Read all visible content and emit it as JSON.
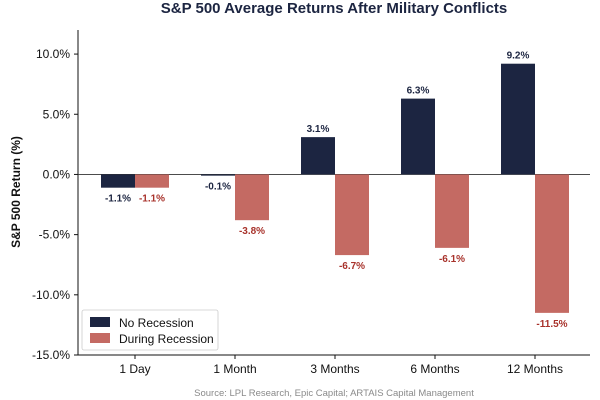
{
  "chart_data": {
    "type": "bar",
    "title": "S&P 500 Average Returns After Military Conflicts",
    "xlabel": "",
    "ylabel": "S&P 500 Return (%)",
    "categories": [
      "1 Day",
      "1 Month",
      "3 Months",
      "6 Months",
      "12 Months"
    ],
    "series": [
      {
        "name": "No Recession",
        "color": "#1c2541",
        "label_color": "#1c2541",
        "values": [
          -1.1,
          -0.1,
          3.1,
          6.3,
          9.2
        ],
        "labels": [
          "-1.1%",
          "-0.1%",
          "3.1%",
          "6.3%",
          "9.2%"
        ]
      },
      {
        "name": "During Recession",
        "color": "#c46a63",
        "label_color": "#a8322b",
        "values": [
          -1.1,
          -3.8,
          -6.7,
          -6.1,
          -11.5
        ],
        "labels": [
          "-1.1%",
          "-3.8%",
          "-6.7%",
          "-6.1%",
          "-11.5%"
        ]
      }
    ],
    "ylim": [
      -15,
      12
    ],
    "yticks": [
      10,
      5,
      0,
      -5,
      -10,
      -15
    ],
    "ytick_labels": [
      "10.0%",
      "5.0%",
      "0.0%",
      "-5.0%",
      "-10.0%",
      "-15.0%"
    ],
    "grid": false,
    "legend_position": "bottom-left",
    "source": "Source: LPL Research, Epic Capital; ARTAIS Capital Management"
  }
}
